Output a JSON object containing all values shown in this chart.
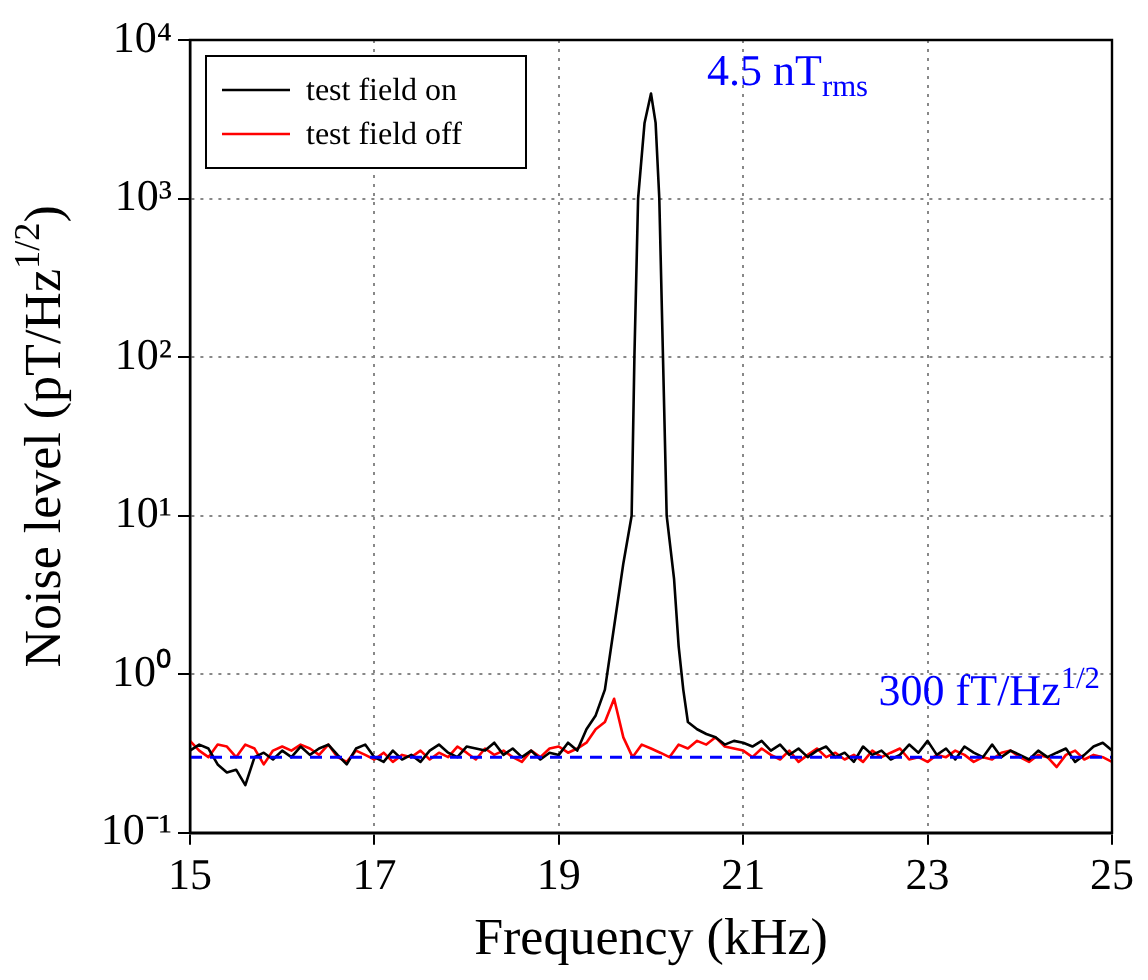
{
  "chart_data": {
    "type": "line",
    "xlabel": "Frequency (kHz)",
    "ylabel": "Noise level (pT/Hz$^{1/2}$)",
    "xlim": [
      15,
      25
    ],
    "xticks": [
      15,
      17,
      19,
      21,
      23,
      25
    ],
    "ylim": [
      0.1,
      10000
    ],
    "log": true,
    "yticks": [
      {
        "value": 0.1,
        "label": "10⁻¹"
      },
      {
        "value": 1,
        "label": "10⁰"
      },
      {
        "value": 10,
        "label": "10¹"
      },
      {
        "value": 100,
        "label": "10²"
      },
      {
        "value": 1000,
        "label": "10³"
      },
      {
        "value": 10000,
        "label": "10⁴"
      }
    ],
    "grid": true,
    "legend": "top left",
    "marker": "none",
    "line_style": "solid",
    "series": [
      {
        "name": "test field on",
        "color": "#000000",
        "x": [
          15.0,
          15.1,
          15.2,
          15.3,
          15.4,
          15.5,
          15.6,
          15.7,
          15.8,
          15.9,
          16.0,
          16.1,
          16.2,
          16.3,
          16.4,
          16.5,
          16.6,
          16.7,
          16.8,
          16.9,
          17.0,
          17.1,
          17.2,
          17.3,
          17.4,
          17.5,
          17.6,
          17.7,
          17.8,
          17.9,
          18.0,
          18.1,
          18.2,
          18.3,
          18.4,
          18.5,
          18.6,
          18.7,
          18.8,
          18.9,
          19.0,
          19.1,
          19.2,
          19.3,
          19.4,
          19.5,
          19.6,
          19.7,
          19.79,
          19.82,
          19.86,
          19.93,
          20.0,
          20.05,
          20.09,
          20.13,
          20.17,
          20.25,
          20.3,
          20.35,
          20.4,
          20.5,
          20.6,
          20.7,
          20.8,
          20.9,
          21.0,
          21.1,
          21.2,
          21.3,
          21.4,
          21.5,
          21.6,
          21.7,
          21.8,
          21.9,
          22.0,
          22.1,
          22.2,
          22.3,
          22.4,
          22.5,
          22.6,
          22.7,
          22.8,
          22.9,
          23.0,
          23.1,
          23.2,
          23.3,
          23.4,
          23.5,
          23.6,
          23.7,
          23.8,
          23.9,
          24.0,
          24.1,
          24.2,
          24.3,
          24.4,
          24.5,
          24.6,
          24.7,
          24.8,
          24.9,
          25.0
        ],
        "values": [
          0.33,
          0.36,
          0.34,
          0.27,
          0.24,
          0.25,
          0.2,
          0.3,
          0.32,
          0.29,
          0.33,
          0.3,
          0.35,
          0.31,
          0.34,
          0.36,
          0.31,
          0.27,
          0.34,
          0.36,
          0.3,
          0.28,
          0.33,
          0.29,
          0.31,
          0.28,
          0.33,
          0.36,
          0.32,
          0.3,
          0.35,
          0.34,
          0.33,
          0.37,
          0.31,
          0.34,
          0.3,
          0.33,
          0.29,
          0.32,
          0.31,
          0.37,
          0.33,
          0.45,
          0.55,
          0.8,
          2,
          5,
          10,
          100,
          1000,
          3000,
          4600,
          3000,
          1000,
          100,
          10,
          4,
          1.5,
          0.8,
          0.5,
          0.45,
          0.42,
          0.4,
          0.36,
          0.38,
          0.37,
          0.35,
          0.38,
          0.33,
          0.36,
          0.31,
          0.34,
          0.3,
          0.33,
          0.35,
          0.3,
          0.32,
          0.28,
          0.35,
          0.31,
          0.33,
          0.29,
          0.31,
          0.36,
          0.32,
          0.38,
          0.31,
          0.34,
          0.29,
          0.35,
          0.32,
          0.3,
          0.36,
          0.3,
          0.33,
          0.31,
          0.29,
          0.33,
          0.3,
          0.32,
          0.34,
          0.28,
          0.31,
          0.35,
          0.37,
          0.33
        ]
      },
      {
        "name": "test field off",
        "color": "#ff0000",
        "x": [
          15.0,
          15.1,
          15.2,
          15.3,
          15.4,
          15.5,
          15.6,
          15.7,
          15.8,
          15.9,
          16.0,
          16.1,
          16.2,
          16.3,
          16.4,
          16.5,
          16.6,
          16.7,
          16.8,
          16.9,
          17.0,
          17.1,
          17.2,
          17.3,
          17.4,
          17.5,
          17.6,
          17.7,
          17.8,
          17.9,
          18.0,
          18.1,
          18.2,
          18.3,
          18.4,
          18.5,
          18.6,
          18.7,
          18.8,
          18.9,
          19.0,
          19.1,
          19.2,
          19.3,
          19.4,
          19.5,
          19.6,
          19.7,
          19.8,
          19.9,
          20.0,
          20.1,
          20.2,
          20.3,
          20.4,
          20.5,
          20.6,
          20.7,
          20.8,
          20.9,
          21.0,
          21.1,
          21.2,
          21.3,
          21.4,
          21.5,
          21.6,
          21.7,
          21.8,
          21.9,
          22.0,
          22.1,
          22.2,
          22.3,
          22.4,
          22.5,
          22.6,
          22.7,
          22.8,
          22.9,
          23.0,
          23.1,
          23.2,
          23.3,
          23.4,
          23.5,
          23.6,
          23.7,
          23.8,
          23.9,
          24.0,
          24.1,
          24.2,
          24.3,
          24.4,
          24.5,
          24.6,
          24.7,
          24.8,
          24.9,
          25.0
        ],
        "values": [
          0.38,
          0.33,
          0.3,
          0.36,
          0.35,
          0.3,
          0.36,
          0.34,
          0.27,
          0.33,
          0.35,
          0.33,
          0.36,
          0.34,
          0.31,
          0.36,
          0.3,
          0.28,
          0.33,
          0.31,
          0.29,
          0.32,
          0.28,
          0.31,
          0.3,
          0.33,
          0.29,
          0.32,
          0.3,
          0.35,
          0.32,
          0.29,
          0.34,
          0.31,
          0.33,
          0.3,
          0.28,
          0.33,
          0.3,
          0.34,
          0.35,
          0.32,
          0.34,
          0.37,
          0.45,
          0.5,
          0.7,
          0.4,
          0.3,
          0.36,
          0.34,
          0.32,
          0.3,
          0.36,
          0.34,
          0.38,
          0.36,
          0.4,
          0.35,
          0.34,
          0.33,
          0.3,
          0.34,
          0.31,
          0.29,
          0.33,
          0.28,
          0.31,
          0.34,
          0.3,
          0.32,
          0.29,
          0.31,
          0.28,
          0.33,
          0.3,
          0.32,
          0.34,
          0.29,
          0.3,
          0.28,
          0.31,
          0.3,
          0.33,
          0.31,
          0.28,
          0.3,
          0.29,
          0.32,
          0.33,
          0.3,
          0.28,
          0.31,
          0.3,
          0.26,
          0.31,
          0.33,
          0.29,
          0.31,
          0.3,
          0.28
        ]
      }
    ],
    "ref_lines": [
      {
        "axis": "y",
        "value": 0.3,
        "label": "300 fT/Hz$^{1/2}$",
        "color": "#0000ff",
        "line_style": "dashed"
      }
    ],
    "annotations": [
      {
        "text": "4.5 nT$_{rms}$",
        "x": 20.0,
        "y": 4600
      }
    ]
  }
}
